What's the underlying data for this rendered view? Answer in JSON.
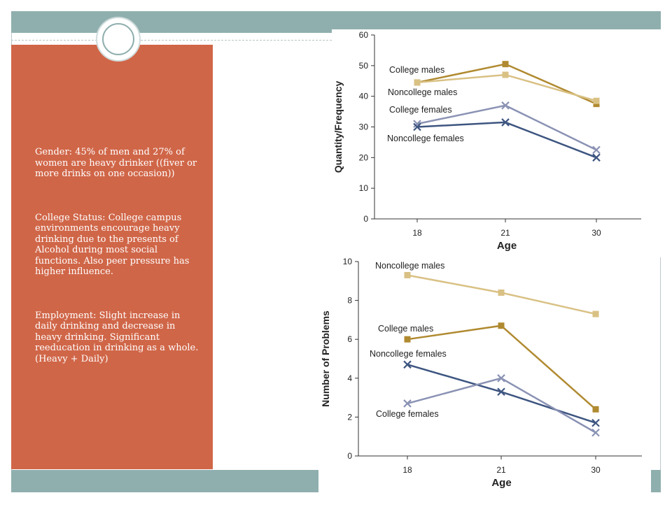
{
  "slide": {
    "paragraphs": [
      "Gender: 45% of men and 27% of women are heavy drinker ((fiver or more drinks on one occasion))",
      "College Status: College campus environments encourage heavy drinking due to the presents of Alcohol during most social functions. Also peer pressure has higher influence.",
      "Employment: Slight increase in daily drinking and decrease in heavy drinking. Significant reeducation in drinking as a whole. (Heavy + Daily)"
    ]
  },
  "colors": {
    "accent_band": "#8fafae",
    "side_panel": "#d06648",
    "college_males": "#b08a30",
    "noncollege_males": "#d9c184",
    "college_females": "#8a92b4",
    "noncollege_females": "#3d5580"
  },
  "chart_data": [
    {
      "type": "line",
      "title": "",
      "xlabel": "Age",
      "ylabel": "Quantity/Frequency",
      "categories": [
        "18",
        "21",
        "30"
      ],
      "ylim": [
        0,
        60
      ],
      "yticks": [
        0,
        10,
        20,
        30,
        40,
        50,
        60
      ],
      "series": [
        {
          "name": "College males",
          "marker": "square",
          "values": [
            44.5,
            50.5,
            37.5
          ]
        },
        {
          "name": "Noncollege males",
          "marker": "square",
          "values": [
            44.5,
            47,
            38.5
          ]
        },
        {
          "name": "College females",
          "marker": "x",
          "values": [
            31,
            37,
            22.5
          ]
        },
        {
          "name": "Noncollege females",
          "marker": "x",
          "values": [
            30,
            31.5,
            20
          ]
        }
      ]
    },
    {
      "type": "line",
      "title": "",
      "xlabel": "Age",
      "ylabel": "Number of Problems",
      "categories": [
        "18",
        "21",
        "30"
      ],
      "ylim": [
        0,
        10
      ],
      "yticks": [
        0,
        2,
        4,
        6,
        8,
        10
      ],
      "series": [
        {
          "name": "Noncollege males",
          "marker": "square",
          "values": [
            9.3,
            8.4,
            7.3
          ]
        },
        {
          "name": "College males",
          "marker": "square",
          "values": [
            6,
            6.7,
            2.4
          ]
        },
        {
          "name": "Noncollege females",
          "marker": "x",
          "values": [
            4.7,
            3.3,
            1.7
          ]
        },
        {
          "name": "College females",
          "marker": "x",
          "values": [
            2.7,
            4,
            1.2
          ]
        }
      ]
    }
  ]
}
